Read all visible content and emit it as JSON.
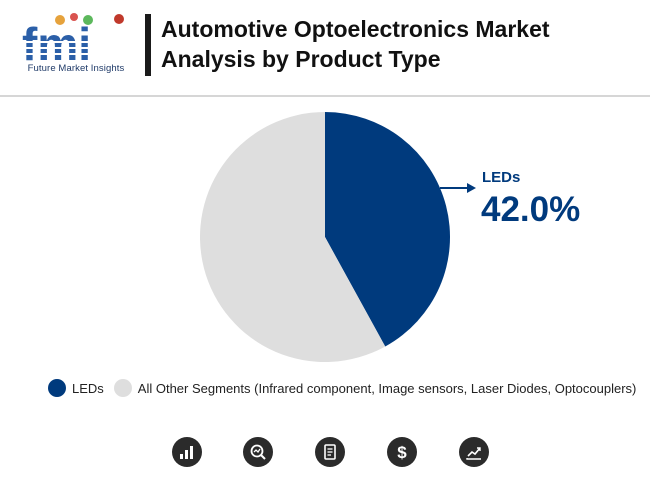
{
  "header": {
    "logo_text": "fmi",
    "logo_subtitle": "Future Market Insights",
    "title_line1": "Automotive Optoelectronics Market",
    "title_line2": "Analysis by Product Type"
  },
  "chart_data": {
    "type": "pie",
    "title": "Automotive Optoelectronics Market Analysis by Product Type",
    "slices": [
      {
        "label": "LEDs",
        "value": 42.0,
        "color": "#003a7d"
      },
      {
        "label": "All Other Segments (Infrared component, Image sensors, Laser Diodes, Optocouplers)",
        "value": 58.0,
        "color": "#dedede"
      }
    ],
    "annotation": {
      "label": "LEDs",
      "value_text": "42.0%"
    },
    "legend_position": "bottom"
  },
  "legend": {
    "items": [
      {
        "label": "LEDs",
        "color": "#003a7d"
      },
      {
        "label": "All Other Segments (Infrared component, Image sensors, Laser Diodes, Optocouplers)",
        "color": "#dedede"
      }
    ]
  },
  "footer": {
    "icons": [
      "bar-chart-icon",
      "magnifier-chart-icon",
      "report-icon",
      "dollar-icon",
      "trend-chart-icon"
    ]
  },
  "colors": {
    "accent": "#003a7d",
    "other": "#dedede",
    "title": "#111111",
    "logo_blue": "#2b5fa8"
  }
}
